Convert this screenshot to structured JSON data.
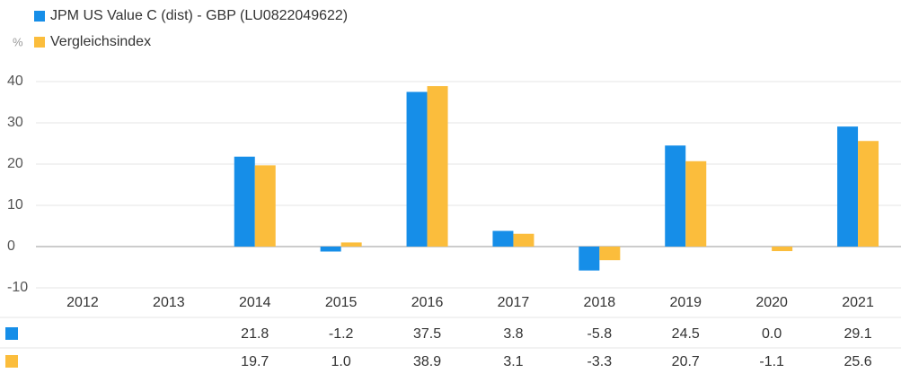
{
  "chart_data": {
    "type": "bar",
    "y_label": "%",
    "categories": [
      "2012",
      "2013",
      "2014",
      "2015",
      "2016",
      "2017",
      "2018",
      "2019",
      "2020",
      "2021"
    ],
    "series": [
      {
        "name": "JPM US Value C (dist) - GBP (LU0822049622)",
        "color": "#168ee8",
        "values": [
          null,
          null,
          21.8,
          -1.2,
          37.5,
          3.8,
          -5.8,
          24.5,
          0,
          29.1
        ],
        "value_labels": [
          null,
          null,
          "21.8",
          "-1.2",
          "37.5",
          "3.8",
          "-5.8",
          "24.5",
          "0.0",
          "29.1"
        ]
      },
      {
        "name": "Vergleichsindex",
        "color": "#fbbd3c",
        "values": [
          null,
          null,
          19.7,
          1,
          38.9,
          3.1,
          -3.3,
          20.7,
          -1.1,
          25.6
        ],
        "value_labels": [
          null,
          null,
          "19.7",
          "1.0",
          "38.9",
          "3.1",
          "-3.3",
          "20.7",
          "-1.1",
          "25.6"
        ]
      }
    ],
    "ylim": [
      -10,
      40
    ],
    "yticks": [
      -10,
      0,
      10,
      20,
      30,
      40
    ],
    "grid": true
  }
}
